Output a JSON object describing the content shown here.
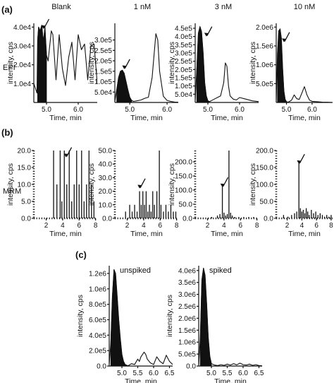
{
  "figure": {
    "panel_labels": [
      "(a)",
      "(b)",
      "(c)"
    ],
    "row_labels": [
      "EPI",
      "MRM"
    ],
    "column_titles": [
      "Blank",
      "1 nM",
      "3 nM",
      "10 nM"
    ],
    "y_axis_label": "intensity, cps",
    "x_axis_label": "Time, min",
    "inset_labels": [
      "unspiked",
      "spiked"
    ]
  },
  "chart_data": [
    {
      "type": "line",
      "panel": "(a)",
      "row": "EPI",
      "title": "Blank",
      "xlabel": "Time, min",
      "ylabel": "intensity, cps",
      "xlim": [
        4.6,
        6.6
      ],
      "ylim": [
        0,
        42000
      ],
      "xticks": [
        5.0,
        6.0
      ],
      "xtick_labels": [
        "5.0",
        "6.0"
      ],
      "yticks": [
        10000,
        20000,
        30000,
        40000
      ],
      "ytick_labels": [
        "1.0e4",
        "2.0e4",
        "3.0e4",
        "4.0e4"
      ],
      "peak_fill": [
        4.72,
        5.0
      ],
      "arrow": {
        "x": 4.9,
        "y": 39000
      },
      "series": [
        {
          "x": [
            4.6,
            4.7,
            4.72,
            4.75,
            4.8,
            4.85,
            4.9,
            4.95,
            5.0,
            5.05,
            5.15,
            5.2,
            5.3,
            5.4,
            5.5,
            5.6,
            5.7,
            5.8,
            5.9,
            6.0,
            6.1,
            6.2,
            6.3,
            6.4,
            6.5,
            6.6
          ],
          "y": [
            10000,
            5000,
            33000,
            40000,
            38000,
            41000,
            32000,
            40000,
            25000,
            22000,
            38000,
            36000,
            12000,
            36000,
            18000,
            9000,
            24000,
            32000,
            12000,
            36000,
            28000,
            31000,
            12000,
            30000,
            31000,
            10000
          ]
        }
      ]
    },
    {
      "type": "line",
      "panel": "(a)",
      "row": "EPI",
      "title": "1 nM",
      "xlabel": "Time, min",
      "ylabel": "intensity, cps",
      "xlim": [
        4.6,
        6.3
      ],
      "ylim": [
        0,
        380000
      ],
      "xticks": [
        5.0,
        6.0
      ],
      "xtick_labels": [
        "5.0",
        "6.0"
      ],
      "yticks": [
        50000,
        100000,
        150000,
        200000,
        250000,
        300000
      ],
      "ytick_labels": [
        "5.0e4",
        "1.0e5",
        "1.5e5",
        "2.0e5",
        "2.5e5",
        "3.0e5"
      ],
      "peak_fill": [
        4.62,
        5.05
      ],
      "arrow": {
        "x": 4.85,
        "y": 160000
      },
      "series": [
        {
          "x": [
            4.6,
            4.65,
            4.7,
            4.75,
            4.8,
            4.85,
            4.9,
            4.95,
            5.0,
            5.05,
            5.1,
            5.2,
            5.3,
            5.4,
            5.5,
            5.6,
            5.7,
            5.75,
            5.8,
            5.9,
            6.0,
            6.1,
            6.2,
            6.3
          ],
          "y": [
            5000,
            60000,
            120000,
            150000,
            155000,
            140000,
            100000,
            60000,
            25000,
            10000,
            5000,
            8000,
            12000,
            20000,
            25000,
            120000,
            330000,
            300000,
            150000,
            30000,
            10000,
            5000,
            2000,
            1000
          ]
        }
      ]
    },
    {
      "type": "line",
      "panel": "(a)",
      "row": "EPI",
      "title": "3 nM",
      "xlabel": "Time, min",
      "ylabel": "intensity, cps",
      "xlim": [
        4.6,
        6.6
      ],
      "ylim": [
        0,
        480000
      ],
      "xticks": [
        5.0,
        6.0
      ],
      "xtick_labels": [
        "5.0",
        "6.0"
      ],
      "yticks": [
        50000,
        100000,
        150000,
        200000,
        250000,
        300000,
        350000,
        400000,
        450000
      ],
      "ytick_labels": [
        "5.0e4",
        "1.0e5",
        "1.5e5",
        "2.0e5",
        "2.5e5",
        "3.0e5",
        "3.5e5",
        "4.0e5",
        "4.5e5"
      ],
      "peak_fill": [
        4.62,
        5.05
      ],
      "arrow": {
        "x": 4.95,
        "y": 400000
      },
      "series": [
        {
          "x": [
            4.6,
            4.65,
            4.7,
            4.75,
            4.8,
            4.85,
            4.9,
            4.95,
            5.0,
            5.05,
            5.1,
            5.2,
            5.3,
            5.4,
            5.5,
            5.55,
            5.6,
            5.65,
            5.7,
            5.8,
            5.9,
            6.0,
            6.2,
            6.4,
            6.6
          ],
          "y": [
            10000,
            200000,
            420000,
            460000,
            430000,
            300000,
            120000,
            40000,
            10000,
            5000,
            10000,
            20000,
            30000,
            40000,
            120000,
            240000,
            220000,
            100000,
            40000,
            20000,
            15000,
            30000,
            20000,
            10000,
            5000
          ]
        }
      ]
    },
    {
      "type": "line",
      "panel": "(a)",
      "row": "EPI",
      "title": "10 nM",
      "xlabel": "Time, min",
      "ylabel": "intensity, cps",
      "xlim": [
        4.6,
        6.8
      ],
      "ylim": [
        0,
        2100000
      ],
      "xticks": [
        5.0,
        6.0
      ],
      "xtick_labels": [
        "5.0",
        "6.0"
      ],
      "yticks": [
        500000,
        1000000,
        1500000,
        2000000
      ],
      "ytick_labels": [
        "5.0e5",
        "1.0e6",
        "1.5e6",
        "2.0e6"
      ],
      "peak_fill": [
        4.62,
        5.0
      ],
      "arrow": {
        "x": 4.9,
        "y": 1600000
      },
      "series": [
        {
          "x": [
            4.6,
            4.65,
            4.7,
            4.75,
            4.8,
            4.85,
            4.9,
            4.95,
            5.0,
            5.05,
            5.1,
            5.2,
            5.3,
            5.4,
            5.5,
            5.6,
            5.7,
            5.8,
            5.9,
            6.0,
            6.2,
            6.4,
            6.6,
            6.8
          ],
          "y": [
            50000,
            1300000,
            1900000,
            1950000,
            1700000,
            900000,
            300000,
            80000,
            20000,
            10000,
            20000,
            60000,
            200000,
            100000,
            80000,
            250000,
            420000,
            200000,
            60000,
            30000,
            20000,
            10000,
            5000,
            0
          ]
        }
      ]
    },
    {
      "type": "bar",
      "panel": "(b)",
      "row": "MRM",
      "title": "Blank",
      "xlabel": "Time, min",
      "ylabel": "intensity, cps",
      "xlim": [
        0.5,
        8.2
      ],
      "ylim": [
        0,
        20
      ],
      "xticks": [
        2,
        4,
        6,
        8
      ],
      "xtick_labels": [
        "2",
        "4",
        "6",
        "8"
      ],
      "yticks": [
        0,
        5,
        10,
        15,
        20
      ],
      "ytick_labels": [
        "0.0",
        "5.0",
        "10.0",
        "15.0",
        "20.0"
      ],
      "arrow": {
        "x": 4.4,
        "y": 18
      },
      "x": [
        2.9,
        3.3,
        3.7,
        3.9,
        4.2,
        4.5,
        4.8,
        5.1,
        5.4,
        5.7,
        6.0,
        6.3,
        6.6,
        6.9,
        7.2,
        7.5,
        7.8
      ],
      "values": [
        20,
        10,
        20,
        5,
        20,
        10,
        20,
        5,
        10,
        20,
        10,
        20,
        5,
        10,
        20,
        10,
        5
      ]
    },
    {
      "type": "bar",
      "panel": "(b)",
      "row": "MRM",
      "title": "1 nM",
      "xlabel": "Time, min",
      "ylabel": "intensity, cps",
      "xlim": [
        0.5,
        8.2
      ],
      "ylim": [
        0,
        50
      ],
      "xticks": [
        2,
        4,
        6,
        8
      ],
      "xtick_labels": [
        "2",
        "4",
        "6",
        "8"
      ],
      "yticks": [
        0,
        10,
        20,
        30,
        40,
        50
      ],
      "ytick_labels": [
        "0.0",
        "10.0",
        "20.0",
        "30.0",
        "40.0",
        "50.0"
      ],
      "arrow": {
        "x": 3.5,
        "y": 22
      },
      "x": [
        1.8,
        2.3,
        2.6,
        2.9,
        3.2,
        3.5,
        3.7,
        3.9,
        4.1,
        4.3,
        4.5,
        4.7,
        4.9,
        5.1,
        5.3,
        5.6,
        5.9,
        6.1,
        6.4,
        6.7,
        7.0,
        7.3,
        7.6,
        7.9
      ],
      "values": [
        5,
        10,
        5,
        10,
        5,
        20,
        10,
        20,
        10,
        20,
        5,
        10,
        5,
        20,
        10,
        20,
        50,
        10,
        5,
        10,
        5,
        10,
        5,
        5
      ]
    },
    {
      "type": "bar",
      "panel": "(b)",
      "row": "MRM",
      "title": "3 nM",
      "xlabel": "Time, min",
      "ylabel": "intensity, cps",
      "xlim": [
        0.5,
        8.2
      ],
      "ylim": [
        0,
        240
      ],
      "xticks": [
        2,
        4,
        6,
        8
      ],
      "xtick_labels": [
        "2",
        "4",
        "6",
        "8"
      ],
      "yticks": [
        0,
        50,
        100,
        150,
        200
      ],
      "ytick_labels": [
        "0.0",
        "50.0",
        "100.0",
        "150.0",
        "200.0"
      ],
      "arrow": {
        "x": 3.8,
        "y": 110
      },
      "x": [
        2.5,
        3.2,
        3.5,
        3.8,
        4.0,
        4.2,
        4.4,
        4.6,
        4.8,
        5.0,
        5.3,
        5.8,
        6.4,
        7.0,
        7.6
      ],
      "values": [
        5,
        10,
        15,
        115,
        20,
        10,
        15,
        240,
        20,
        10,
        5,
        5,
        5,
        5,
        5
      ]
    },
    {
      "type": "bar",
      "panel": "(b)",
      "row": "MRM",
      "title": "10 nM",
      "xlabel": "Time, min",
      "ylabel": "intensity, cps",
      "xlim": [
        0.5,
        8.2
      ],
      "ylim": [
        0,
        200
      ],
      "xticks": [
        2,
        4,
        6,
        8
      ],
      "xtick_labels": [
        "2",
        "4",
        "6",
        "8"
      ],
      "yticks": [
        0,
        50,
        100,
        150,
        200
      ],
      "ytick_labels": [
        "0.0",
        "50.0",
        "100.0",
        "150.0",
        "200.0"
      ],
      "arrow": {
        "x": 3.6,
        "y": 160
      },
      "x": [
        1.5,
        2.1,
        2.6,
        3.0,
        3.3,
        3.6,
        3.8,
        4.0,
        4.2,
        4.4,
        4.6,
        4.8,
        5.0,
        5.3,
        5.6,
        5.9,
        6.2,
        6.5,
        6.8,
        7.1,
        7.4,
        7.7,
        8.0
      ],
      "values": [
        10,
        5,
        10,
        15,
        20,
        170,
        30,
        20,
        25,
        15,
        30,
        20,
        10,
        25,
        15,
        20,
        10,
        15,
        10,
        5,
        10,
        5,
        10
      ]
    },
    {
      "type": "line",
      "panel": "(c)",
      "title": "unspiked",
      "xlabel": "Time, min",
      "ylabel": "intensity, cps",
      "xlim": [
        4.6,
        6.6
      ],
      "ylim": [
        0,
        1300000
      ],
      "xticks": [
        5.0,
        5.5,
        6.0,
        6.5
      ],
      "xtick_labels": [
        "5.0",
        "5.5",
        "6.0",
        "6.5"
      ],
      "yticks": [
        0,
        200000,
        400000,
        600000,
        800000,
        1000000,
        1200000
      ],
      "ytick_labels": [
        "0.0",
        "2.0e5",
        "4.0e5",
        "6.0e5",
        "8.0e5",
        "1.0e6",
        "1.2e6"
      ],
      "peak_fill": [
        4.65,
        5.15
      ],
      "series": [
        {
          "x": [
            4.6,
            4.65,
            4.7,
            4.75,
            4.8,
            4.85,
            4.9,
            4.95,
            5.0,
            5.05,
            5.1,
            5.15,
            5.2,
            5.3,
            5.4,
            5.5,
            5.55,
            5.6,
            5.7,
            5.75,
            5.8,
            5.9,
            6.0,
            6.1,
            6.2,
            6.3,
            6.4,
            6.5,
            6.6
          ],
          "y": [
            20000,
            300000,
            900000,
            1250000,
            1200000,
            900000,
            600000,
            350000,
            150000,
            60000,
            20000,
            10000,
            5000,
            30000,
            20000,
            90000,
            60000,
            120000,
            180000,
            150000,
            90000,
            40000,
            20000,
            120000,
            60000,
            30000,
            140000,
            60000,
            20000
          ]
        }
      ]
    },
    {
      "type": "line",
      "panel": "(c)",
      "title": "spiked",
      "xlabel": "Time, min",
      "ylabel": "intensity, cps",
      "xlim": [
        4.6,
        6.6
      ],
      "ylim": [
        0,
        4200000
      ],
      "xticks": [
        5.0,
        5.5,
        6.0,
        6.5
      ],
      "xtick_labels": [
        "5.0",
        "5.5",
        "6.0",
        "6.5"
      ],
      "yticks": [
        0,
        500000,
        1000000,
        1500000,
        2000000,
        2500000,
        3000000,
        3500000,
        4000000
      ],
      "ytick_labels": [
        "0.0",
        "5.0e5",
        "1.0e6",
        "1.5e6",
        "2.0e6",
        "2.5e6",
        "3.0e6",
        "3.5e6",
        "4.0e6"
      ],
      "peak_fill": [
        4.65,
        5.0
      ],
      "series": [
        {
          "x": [
            4.6,
            4.65,
            4.7,
            4.75,
            4.8,
            4.85,
            4.9,
            4.95,
            5.0,
            5.1,
            5.2,
            5.3,
            5.4,
            5.5,
            5.6,
            5.7,
            5.8,
            5.9,
            6.0,
            6.1,
            6.2,
            6.3,
            6.4,
            6.5,
            6.6
          ],
          "y": [
            50000,
            1200000,
            3600000,
            4100000,
            3800000,
            2600000,
            1200000,
            400000,
            100000,
            40000,
            20000,
            60000,
            30000,
            80000,
            40000,
            100000,
            50000,
            120000,
            60000,
            40000,
            80000,
            30000,
            60000,
            20000,
            10000
          ]
        }
      ]
    }
  ]
}
